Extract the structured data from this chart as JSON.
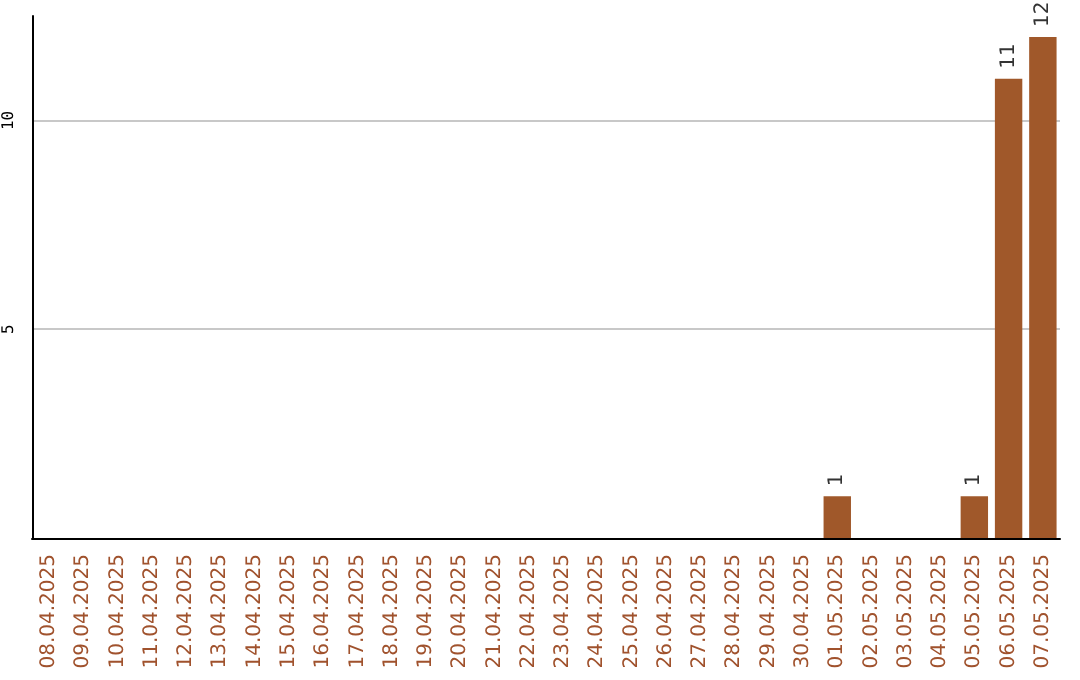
{
  "chart_data": {
    "type": "bar",
    "categories": [
      "08.04.2025",
      "09.04.2025",
      "10.04.2025",
      "11.04.2025",
      "12.04.2025",
      "13.04.2025",
      "14.04.2025",
      "15.04.2025",
      "16.04.2025",
      "17.04.2025",
      "18.04.2025",
      "19.04.2025",
      "20.04.2025",
      "21.04.2025",
      "22.04.2025",
      "23.04.2025",
      "24.04.2025",
      "25.04.2025",
      "26.04.2025",
      "27.04.2025",
      "28.04.2025",
      "29.04.2025",
      "30.04.2025",
      "01.05.2025",
      "02.05.2025",
      "03.05.2025",
      "04.05.2025",
      "05.05.2025",
      "06.05.2025",
      "07.05.2025"
    ],
    "values": [
      0,
      0,
      0,
      0,
      0,
      0,
      0,
      0,
      0,
      0,
      0,
      0,
      0,
      0,
      0,
      0,
      0,
      0,
      0,
      0,
      0,
      0,
      0,
      1,
      0,
      0,
      0,
      1,
      11,
      12
    ],
    "value_labels": [
      null,
      null,
      null,
      null,
      null,
      null,
      null,
      null,
      null,
      null,
      null,
      null,
      null,
      null,
      null,
      null,
      null,
      null,
      null,
      null,
      null,
      null,
      null,
      "1",
      null,
      null,
      null,
      "1",
      "11",
      "12"
    ],
    "color": "#a0582a",
    "ylim": [
      0,
      12.5
    ],
    "yticks": [
      5,
      10
    ],
    "grid": "y"
  }
}
